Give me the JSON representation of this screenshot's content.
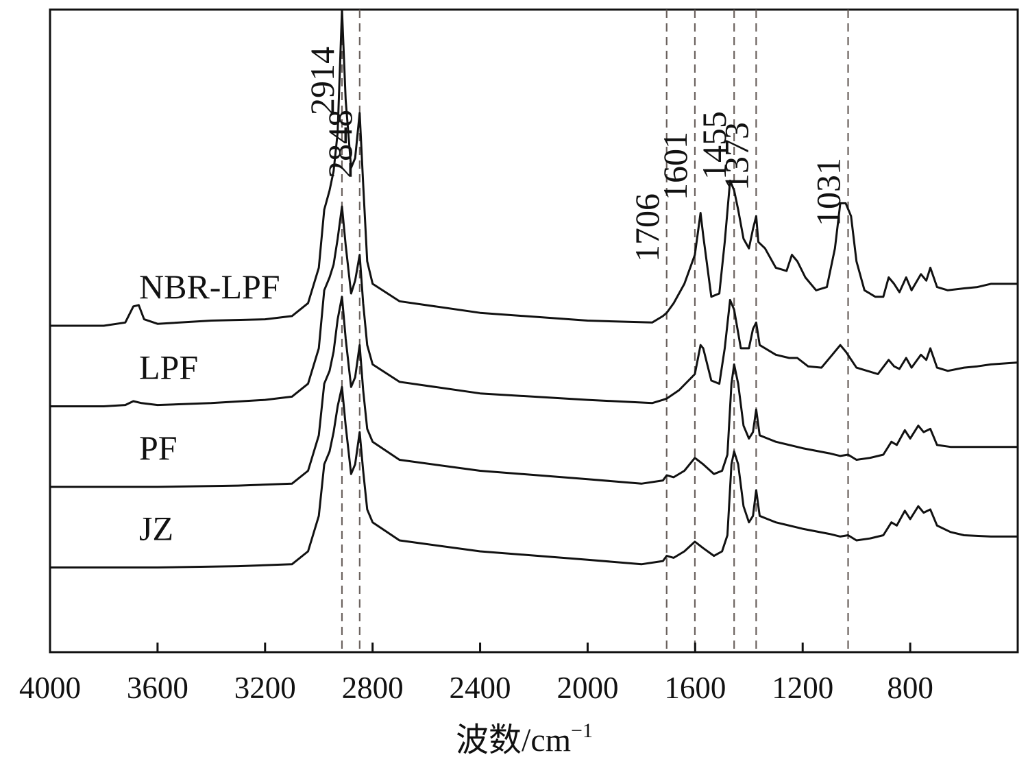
{
  "chart_data": {
    "type": "line",
    "title": "",
    "xlabel": "波数/cm",
    "xlabel_superscript": "−1",
    "ylabel": "",
    "xlim": [
      4000,
      400
    ],
    "x_reversed": true,
    "grid": false,
    "x_ticks": [
      4000,
      3600,
      3200,
      2800,
      2400,
      2000,
      1600,
      1200,
      800
    ],
    "x_tick_labels": [
      "4000",
      "3600",
      "3200",
      "2800",
      "2400",
      "2000",
      "1600",
      "1200",
      "800"
    ],
    "reference_lines": [
      2914,
      2848,
      1706,
      1601,
      1455,
      1373,
      1031
    ],
    "peak_labels": [
      {
        "x": 2914,
        "text": "2914"
      },
      {
        "x": 2848,
        "text": "2848"
      },
      {
        "x": 1706,
        "text": "1706"
      },
      {
        "x": 1601,
        "text": "1601"
      },
      {
        "x": 1455,
        "text": "1455"
      },
      {
        "x": 1373,
        "text": "1373"
      },
      {
        "x": 1031,
        "text": "1031"
      }
    ],
    "series": [
      {
        "name": "NBR-LPF",
        "offset": 4.0,
        "points": [
          [
            4000,
            0.0
          ],
          [
            3800,
            0.0
          ],
          [
            3720,
            0.05
          ],
          [
            3690,
            0.3
          ],
          [
            3670,
            0.32
          ],
          [
            3650,
            0.1
          ],
          [
            3600,
            0.03
          ],
          [
            3400,
            0.08
          ],
          [
            3200,
            0.1
          ],
          [
            3100,
            0.15
          ],
          [
            3040,
            0.35
          ],
          [
            3000,
            0.9
          ],
          [
            2980,
            1.8
          ],
          [
            2960,
            2.1
          ],
          [
            2945,
            2.4
          ],
          [
            2930,
            3.0
          ],
          [
            2914,
            4.9
          ],
          [
            2900,
            3.5
          ],
          [
            2880,
            2.45
          ],
          [
            2865,
            2.6
          ],
          [
            2848,
            3.3
          ],
          [
            2835,
            2.2
          ],
          [
            2820,
            1.0
          ],
          [
            2800,
            0.65
          ],
          [
            2700,
            0.38
          ],
          [
            2400,
            0.2
          ],
          [
            2000,
            0.08
          ],
          [
            1760,
            0.05
          ],
          [
            1720,
            0.15
          ],
          [
            1706,
            0.2
          ],
          [
            1680,
            0.35
          ],
          [
            1640,
            0.65
          ],
          [
            1601,
            1.1
          ],
          [
            1580,
            1.75
          ],
          [
            1570,
            1.4
          ],
          [
            1540,
            0.45
          ],
          [
            1510,
            0.5
          ],
          [
            1490,
            1.3
          ],
          [
            1470,
            2.25
          ],
          [
            1455,
            2.1
          ],
          [
            1440,
            1.8
          ],
          [
            1420,
            1.35
          ],
          [
            1400,
            1.2
          ],
          [
            1385,
            1.5
          ],
          [
            1373,
            1.7
          ],
          [
            1365,
            1.3
          ],
          [
            1340,
            1.2
          ],
          [
            1300,
            0.9
          ],
          [
            1260,
            0.85
          ],
          [
            1240,
            1.1
          ],
          [
            1220,
            1.0
          ],
          [
            1190,
            0.75
          ],
          [
            1150,
            0.55
          ],
          [
            1110,
            0.6
          ],
          [
            1080,
            1.2
          ],
          [
            1060,
            1.9
          ],
          [
            1040,
            1.9
          ],
          [
            1020,
            1.7
          ],
          [
            1000,
            1.0
          ],
          [
            970,
            0.55
          ],
          [
            930,
            0.45
          ],
          [
            900,
            0.45
          ],
          [
            880,
            0.75
          ],
          [
            860,
            0.65
          ],
          [
            840,
            0.52
          ],
          [
            815,
            0.75
          ],
          [
            795,
            0.55
          ],
          [
            760,
            0.8
          ],
          [
            740,
            0.7
          ],
          [
            725,
            0.9
          ],
          [
            700,
            0.6
          ],
          [
            660,
            0.55
          ],
          [
            600,
            0.58
          ],
          [
            550,
            0.6
          ],
          [
            500,
            0.65
          ],
          [
            400,
            0.65
          ]
        ]
      },
      {
        "name": "LPF",
        "offset": 2.75,
        "points": [
          [
            4000,
            0.0
          ],
          [
            3800,
            0.0
          ],
          [
            3720,
            0.02
          ],
          [
            3690,
            0.08
          ],
          [
            3660,
            0.05
          ],
          [
            3600,
            0.02
          ],
          [
            3400,
            0.05
          ],
          [
            3200,
            0.1
          ],
          [
            3100,
            0.15
          ],
          [
            3040,
            0.35
          ],
          [
            3000,
            0.9
          ],
          [
            2980,
            1.8
          ],
          [
            2960,
            2.0
          ],
          [
            2945,
            2.2
          ],
          [
            2930,
            2.6
          ],
          [
            2914,
            3.1
          ],
          [
            2900,
            2.5
          ],
          [
            2880,
            1.75
          ],
          [
            2865,
            1.95
          ],
          [
            2848,
            2.35
          ],
          [
            2835,
            1.6
          ],
          [
            2820,
            0.95
          ],
          [
            2800,
            0.65
          ],
          [
            2700,
            0.38
          ],
          [
            2400,
            0.2
          ],
          [
            2000,
            0.1
          ],
          [
            1760,
            0.05
          ],
          [
            1720,
            0.1
          ],
          [
            1706,
            0.12
          ],
          [
            1660,
            0.25
          ],
          [
            1601,
            0.5
          ],
          [
            1580,
            0.95
          ],
          [
            1570,
            0.9
          ],
          [
            1540,
            0.4
          ],
          [
            1510,
            0.35
          ],
          [
            1490,
            0.9
          ],
          [
            1470,
            1.65
          ],
          [
            1455,
            1.5
          ],
          [
            1430,
            0.9
          ],
          [
            1400,
            0.9
          ],
          [
            1385,
            1.2
          ],
          [
            1373,
            1.3
          ],
          [
            1360,
            0.95
          ],
          [
            1300,
            0.8
          ],
          [
            1250,
            0.75
          ],
          [
            1220,
            0.75
          ],
          [
            1180,
            0.62
          ],
          [
            1130,
            0.6
          ],
          [
            1090,
            0.8
          ],
          [
            1060,
            0.95
          ],
          [
            1040,
            0.85
          ],
          [
            1000,
            0.6
          ],
          [
            960,
            0.55
          ],
          [
            920,
            0.5
          ],
          [
            880,
            0.72
          ],
          [
            860,
            0.62
          ],
          [
            840,
            0.58
          ],
          [
            815,
            0.75
          ],
          [
            795,
            0.6
          ],
          [
            760,
            0.8
          ],
          [
            740,
            0.72
          ],
          [
            725,
            0.9
          ],
          [
            700,
            0.6
          ],
          [
            660,
            0.55
          ],
          [
            600,
            0.6
          ],
          [
            550,
            0.62
          ],
          [
            500,
            0.65
          ],
          [
            400,
            0.68
          ]
        ]
      },
      {
        "name": "PF",
        "offset": 1.5,
        "points": [
          [
            4000,
            0.0
          ],
          [
            3600,
            0.0
          ],
          [
            3300,
            0.02
          ],
          [
            3100,
            0.05
          ],
          [
            3040,
            0.25
          ],
          [
            3000,
            0.8
          ],
          [
            2980,
            1.6
          ],
          [
            2960,
            1.8
          ],
          [
            2945,
            2.1
          ],
          [
            2930,
            2.6
          ],
          [
            2914,
            2.95
          ],
          [
            2900,
            2.3
          ],
          [
            2880,
            1.55
          ],
          [
            2865,
            1.7
          ],
          [
            2848,
            2.2
          ],
          [
            2835,
            1.5
          ],
          [
            2820,
            0.9
          ],
          [
            2800,
            0.7
          ],
          [
            2700,
            0.42
          ],
          [
            2400,
            0.25
          ],
          [
            2000,
            0.12
          ],
          [
            1800,
            0.05
          ],
          [
            1720,
            0.1
          ],
          [
            1706,
            0.18
          ],
          [
            1680,
            0.15
          ],
          [
            1640,
            0.25
          ],
          [
            1601,
            0.45
          ],
          [
            1570,
            0.35
          ],
          [
            1530,
            0.2
          ],
          [
            1500,
            0.25
          ],
          [
            1480,
            0.5
          ],
          [
            1465,
            1.6
          ],
          [
            1455,
            1.9
          ],
          [
            1440,
            1.6
          ],
          [
            1420,
            0.95
          ],
          [
            1400,
            0.75
          ],
          [
            1385,
            0.85
          ],
          [
            1373,
            1.2
          ],
          [
            1360,
            0.8
          ],
          [
            1330,
            0.75
          ],
          [
            1300,
            0.7
          ],
          [
            1200,
            0.6
          ],
          [
            1100,
            0.52
          ],
          [
            1060,
            0.48
          ],
          [
            1031,
            0.5
          ],
          [
            1000,
            0.42
          ],
          [
            950,
            0.45
          ],
          [
            900,
            0.5
          ],
          [
            870,
            0.7
          ],
          [
            850,
            0.65
          ],
          [
            820,
            0.88
          ],
          [
            800,
            0.75
          ],
          [
            770,
            0.95
          ],
          [
            750,
            0.85
          ],
          [
            725,
            0.9
          ],
          [
            700,
            0.65
          ],
          [
            650,
            0.62
          ],
          [
            600,
            0.62
          ],
          [
            500,
            0.62
          ],
          [
            400,
            0.62
          ]
        ]
      },
      {
        "name": "JZ",
        "offset": 0.25,
        "points": [
          [
            4000,
            0.0
          ],
          [
            3600,
            0.0
          ],
          [
            3300,
            0.02
          ],
          [
            3100,
            0.05
          ],
          [
            3040,
            0.25
          ],
          [
            3000,
            0.8
          ],
          [
            2980,
            1.6
          ],
          [
            2960,
            1.8
          ],
          [
            2945,
            2.1
          ],
          [
            2930,
            2.5
          ],
          [
            2914,
            2.8
          ],
          [
            2900,
            2.2
          ],
          [
            2880,
            1.45
          ],
          [
            2865,
            1.6
          ],
          [
            2848,
            2.1
          ],
          [
            2835,
            1.5
          ],
          [
            2820,
            0.9
          ],
          [
            2800,
            0.7
          ],
          [
            2700,
            0.42
          ],
          [
            2400,
            0.25
          ],
          [
            2000,
            0.12
          ],
          [
            1800,
            0.05
          ],
          [
            1720,
            0.1
          ],
          [
            1706,
            0.18
          ],
          [
            1680,
            0.15
          ],
          [
            1640,
            0.25
          ],
          [
            1601,
            0.4
          ],
          [
            1570,
            0.3
          ],
          [
            1530,
            0.18
          ],
          [
            1500,
            0.25
          ],
          [
            1480,
            0.5
          ],
          [
            1465,
            1.6
          ],
          [
            1455,
            1.8
          ],
          [
            1440,
            1.6
          ],
          [
            1420,
            0.95
          ],
          [
            1400,
            0.7
          ],
          [
            1385,
            0.8
          ],
          [
            1373,
            1.2
          ],
          [
            1360,
            0.8
          ],
          [
            1330,
            0.75
          ],
          [
            1300,
            0.7
          ],
          [
            1200,
            0.6
          ],
          [
            1100,
            0.52
          ],
          [
            1060,
            0.48
          ],
          [
            1031,
            0.5
          ],
          [
            1000,
            0.42
          ],
          [
            950,
            0.45
          ],
          [
            900,
            0.5
          ],
          [
            870,
            0.7
          ],
          [
            850,
            0.65
          ],
          [
            820,
            0.88
          ],
          [
            800,
            0.75
          ],
          [
            770,
            0.95
          ],
          [
            750,
            0.85
          ],
          [
            725,
            0.9
          ],
          [
            700,
            0.65
          ],
          [
            650,
            0.55
          ],
          [
            600,
            0.5
          ],
          [
            500,
            0.48
          ],
          [
            400,
            0.48
          ]
        ]
      }
    ]
  }
}
